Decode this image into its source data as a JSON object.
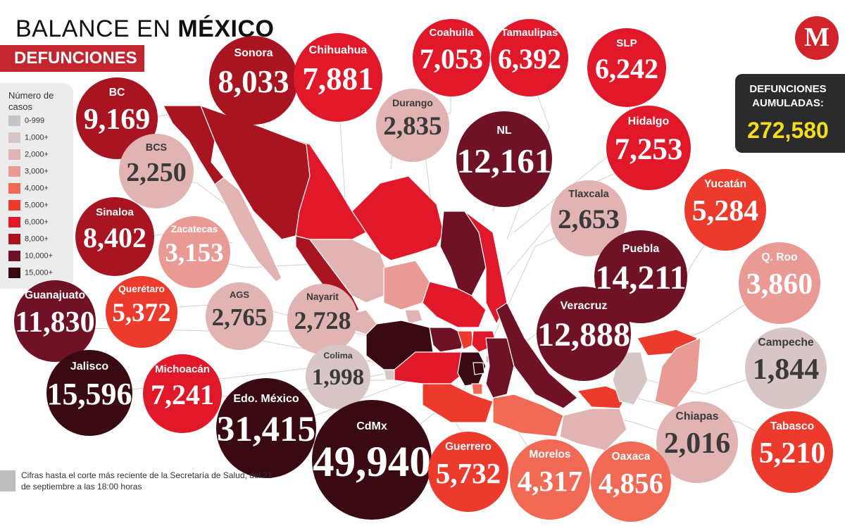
{
  "header": {
    "title_light": "BALANCE EN",
    "title_bold": "MÉXICO",
    "subtitle": "DEFUNCIONES",
    "logo_letter": "M"
  },
  "legend": {
    "title": "Número de casos",
    "items": [
      {
        "label": "0-999",
        "color": "#c9c4c4"
      },
      {
        "label": "1,000+",
        "color": "#d8c6c6"
      },
      {
        "label": "2,000+",
        "color": "#e2b3b3"
      },
      {
        "label": "3,000+",
        "color": "#ea9a94"
      },
      {
        "label": "4,000+",
        "color": "#f06a55"
      },
      {
        "label": "5,000+",
        "color": "#ec3a2c"
      },
      {
        "label": "6,000+",
        "color": "#e0182a"
      },
      {
        "label": "8,000+",
        "color": "#a8141f"
      },
      {
        "label": "10,000+",
        "color": "#701226"
      },
      {
        "label": "15,000+",
        "color": "#3a0a12"
      }
    ]
  },
  "total": {
    "label": "DEFUNCIONES AUMULADAS:",
    "value": "272,580",
    "value_color": "#f3dc20"
  },
  "note": {
    "text": "Cifras hasta el corte más reciente de la Secretaría de Salud, del 21 de septiembre a las 18:00 horas"
  },
  "states": [
    {
      "name": "Sonora",
      "value": "8,033",
      "color": "#a8141f"
    },
    {
      "name": "Chihuahua",
      "value": "7,881",
      "color": "#e0182a"
    },
    {
      "name": "Coahuila",
      "value": "7,053",
      "color": "#e0182a"
    },
    {
      "name": "Tamaulipas",
      "value": "6,392",
      "color": "#e0182a"
    },
    {
      "name": "SLP",
      "value": "6,242",
      "color": "#e0182a"
    },
    {
      "name": "BC",
      "value": "9,169",
      "color": "#a8141f"
    },
    {
      "name": "Durango",
      "value": "2,835",
      "color": "#e2b3b3"
    },
    {
      "name": "NL",
      "value": "12,161",
      "color": "#701226"
    },
    {
      "name": "Hidalgo",
      "value": "7,253",
      "color": "#e0182a"
    },
    {
      "name": "BCS",
      "value": "2,250",
      "color": "#e2b3b3"
    },
    {
      "name": "Yucatán",
      "value": "5,284",
      "color": "#ec3a2c"
    },
    {
      "name": "Tlaxcala",
      "value": "2,653",
      "color": "#e2b3b3"
    },
    {
      "name": "Sinaloa",
      "value": "8,402",
      "color": "#a8141f"
    },
    {
      "name": "Zacatecas",
      "value": "3,153",
      "color": "#ea9a94"
    },
    {
      "name": "Puebla",
      "value": "14,211",
      "color": "#701226"
    },
    {
      "name": "Q. Roo",
      "value": "3,860",
      "color": "#ea9a94"
    },
    {
      "name": "Querétaro",
      "value": "5,372",
      "color": "#ec3a2c"
    },
    {
      "name": "AGS",
      "value": "2,765",
      "color": "#e2b3b3"
    },
    {
      "name": "Nayarit",
      "value": "2,728",
      "color": "#e2b3b3"
    },
    {
      "name": "Guanajuato",
      "value": "11,830",
      "color": "#701226"
    },
    {
      "name": "Veracruz",
      "value": "12,888",
      "color": "#701226"
    },
    {
      "name": "Campeche",
      "value": "1,844",
      "color": "#d8c6c6"
    },
    {
      "name": "Colima",
      "value": "1,998",
      "color": "#d8c6c6"
    },
    {
      "name": "Jalisco",
      "value": "15,596",
      "color": "#3a0a12"
    },
    {
      "name": "Michoacán",
      "value": "7,241",
      "color": "#e0182a"
    },
    {
      "name": "Chiapas",
      "value": "2,016",
      "color": "#e2b3b3"
    },
    {
      "name": "Edo. México",
      "value": "31,415",
      "color": "#3a0a12"
    },
    {
      "name": "CdMx",
      "value": "49,940",
      "color": "#3a0a12"
    },
    {
      "name": "Guerrero",
      "value": "5,732",
      "color": "#ec3a2c"
    },
    {
      "name": "Morelos",
      "value": "4,317",
      "color": "#f06a55"
    },
    {
      "name": "Oaxaca",
      "value": "4,856",
      "color": "#f06a55"
    },
    {
      "name": "Tabasco",
      "value": "5,210",
      "color": "#ec3a2c"
    }
  ]
}
